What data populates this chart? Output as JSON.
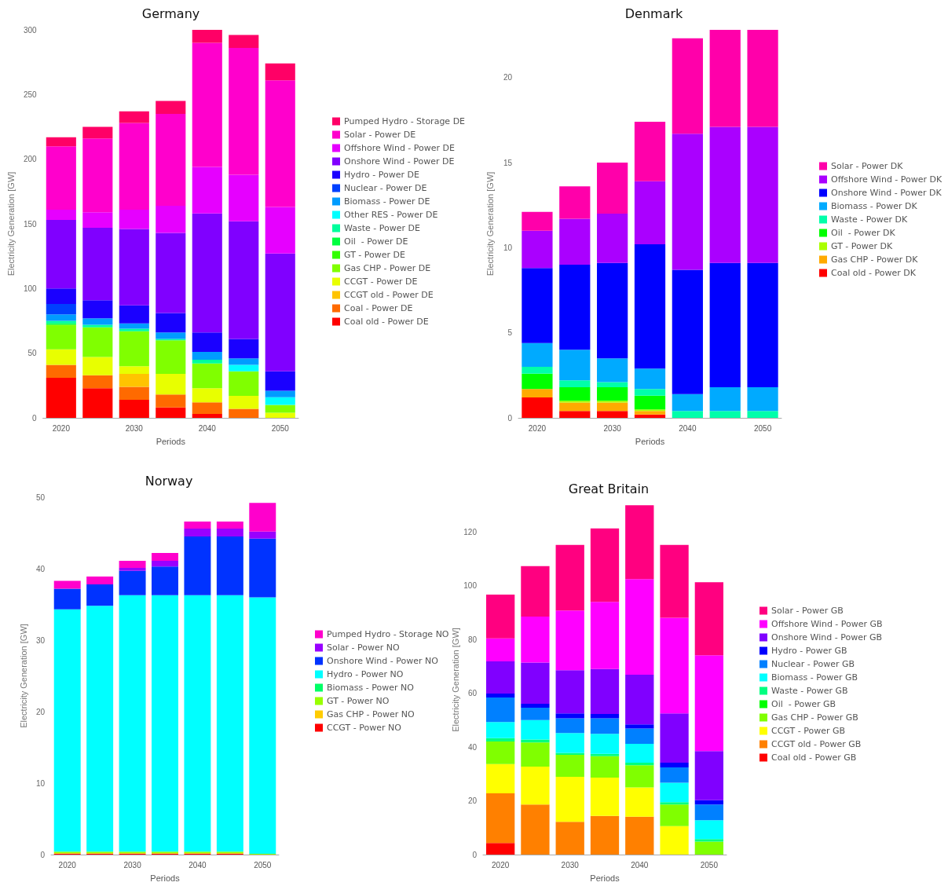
{
  "chart_data": [
    {
      "type": "bar",
      "title": "Germany",
      "xlabel": "Periods",
      "ylabel": "Electricity Generation [GW]",
      "stacked": true,
      "legend": "right",
      "grid": false,
      "categories": [
        "2020",
        null,
        "2030",
        null,
        "2040",
        null,
        "2050"
      ],
      "ylim": [
        0,
        300
      ],
      "yticks": [
        0,
        50,
        100,
        150,
        200,
        250,
        300
      ],
      "series": [
        {
          "name": "Coal old - Power DE",
          "color": "#ff0000",
          "values": [
            31,
            23,
            14,
            8,
            3,
            null,
            null
          ]
        },
        {
          "name": "Coal - Power DE",
          "color": "#ff6a00",
          "values": [
            10,
            10,
            10,
            10,
            9,
            7,
            null
          ]
        },
        {
          "name": "CCGT old - Power DE",
          "color": "#ffc400",
          "values": [
            null,
            null,
            10,
            null,
            null,
            null,
            null
          ]
        },
        {
          "name": "CCGT - Power DE",
          "color": "#e8ff00",
          "values": [
            12,
            14,
            6,
            16,
            11,
            10,
            4
          ]
        },
        {
          "name": "Gas CHP - Power DE",
          "color": "#80ff00",
          "values": [
            19,
            23,
            27,
            26,
            19,
            19,
            6
          ]
        },
        {
          "name": "GT - Power DE",
          "color": "#33ff00",
          "values": [
            null,
            null,
            null,
            null,
            null,
            null,
            null
          ]
        },
        {
          "name": "Oil  - Power DE",
          "color": "#00ff40",
          "values": [
            1,
            null,
            null,
            null,
            null,
            null,
            null
          ]
        },
        {
          "name": "Waste - Power DE",
          "color": "#00ff9c",
          "values": [
            2,
            2,
            2,
            1,
            3,
            null,
            null
          ]
        },
        {
          "name": "Other RES - Power DE",
          "color": "#00ffff",
          "values": [
            null,
            null,
            null,
            null,
            null,
            5,
            6
          ]
        },
        {
          "name": "Biomass - Power DE",
          "color": "#009cff",
          "values": [
            5,
            5,
            4,
            5,
            6,
            5,
            5
          ]
        },
        {
          "name": "Nuclear - Power DE",
          "color": "#0040ff",
          "values": [
            8,
            null,
            null,
            null,
            null,
            null,
            null
          ]
        },
        {
          "name": "Hydro - Power DE",
          "color": "#1a00ff",
          "values": [
            12,
            14,
            14,
            15,
            15,
            15,
            15
          ]
        },
        {
          "name": "Onshore Wind - Power DE",
          "color": "#8000ff",
          "values": [
            53,
            56,
            59,
            62,
            92,
            91,
            91
          ]
        },
        {
          "name": "Offshore Wind - Power DE",
          "color": "#e600ff",
          "values": [
            8,
            12,
            15,
            21,
            36,
            36,
            36
          ]
        },
        {
          "name": "Solar - Power DE",
          "color": "#ff00cc",
          "values": [
            49,
            57,
            67,
            71,
            96,
            98,
            98
          ]
        },
        {
          "name": "Pumped Hydro - Storage DE",
          "color": "#ff0066",
          "values": [
            7,
            9,
            9,
            10,
            10,
            10,
            13
          ]
        }
      ]
    },
    {
      "type": "bar",
      "title": "Denmark",
      "xlabel": "Periods",
      "ylabel": "Electricity Generation [GW]",
      "stacked": true,
      "legend": "right",
      "grid": false,
      "categories": [
        "2020",
        null,
        "2030",
        null,
        "2040",
        null,
        "2050"
      ],
      "ylim": [
        0,
        22.8
      ],
      "yticks": [
        0,
        5,
        10,
        15,
        20
      ],
      "series": [
        {
          "name": "Coal old - Power DK",
          "color": "#ff0000",
          "values": [
            1.2,
            0.4,
            0.4,
            0.2,
            null,
            null,
            null
          ]
        },
        {
          "name": "Gas CHP - Power DK",
          "color": "#ffaa00",
          "values": [
            0.5,
            0.5,
            0.5,
            0.2,
            null,
            null,
            null
          ]
        },
        {
          "name": "GT - Power DK",
          "color": "#aaff00",
          "values": [
            null,
            0.1,
            0.1,
            0.1,
            null,
            null,
            null
          ]
        },
        {
          "name": "Oil  - Power DK",
          "color": "#00ff00",
          "values": [
            0.9,
            0.8,
            0.8,
            0.8,
            null,
            null,
            null
          ]
        },
        {
          "name": "Waste - Power DK",
          "color": "#00ffaa",
          "values": [
            0.4,
            0.4,
            0.3,
            0.4,
            0.4,
            0.4,
            0.4
          ]
        },
        {
          "name": "Biomass - Power DK",
          "color": "#00aaff",
          "values": [
            1.4,
            1.8,
            1.4,
            1.2,
            1.0,
            1.4,
            1.4
          ]
        },
        {
          "name": "Onshore Wind - Power DK",
          "color": "#0000ff",
          "values": [
            4.4,
            5.0,
            5.6,
            7.3,
            7.3,
            7.3,
            7.3
          ]
        },
        {
          "name": "Offshore Wind - Power DK",
          "color": "#aa00ff",
          "values": [
            2.2,
            2.7,
            2.9,
            3.7,
            8.0,
            8.0,
            8.0
          ]
        },
        {
          "name": "Solar - Power DK",
          "color": "#ff00aa",
          "values": [
            1.1,
            1.9,
            3.0,
            3.5,
            5.6,
            5.7,
            5.7
          ]
        }
      ]
    },
    {
      "type": "bar",
      "title": "Norway",
      "xlabel": "Periods",
      "ylabel": "Electricity Generation [GW]",
      "stacked": true,
      "legend": "right",
      "grid": false,
      "categories": [
        "2020",
        null,
        "2030",
        null,
        "2040",
        null,
        "2050"
      ],
      "ylim": [
        0,
        50
      ],
      "yticks": [
        0,
        10,
        20,
        30,
        40,
        50
      ],
      "series": [
        {
          "name": "CCGT - Power NO",
          "color": "#ff0000",
          "values": [
            0.1,
            0.1,
            0.1,
            0.1,
            0.1,
            0.1,
            null
          ]
        },
        {
          "name": "Gas CHP - Power NO",
          "color": "#ffcc00",
          "values": [
            0.1,
            0.1,
            0.1,
            0.1,
            0.1,
            0.1,
            null
          ]
        },
        {
          "name": "GT - Power NO",
          "color": "#99ff00",
          "values": [
            0.2,
            0.2,
            0.2,
            0.2,
            0.2,
            0.2,
            0.1
          ]
        },
        {
          "name": "Biomass - Power NO",
          "color": "#00ff66",
          "values": [
            null,
            null,
            null,
            null,
            null,
            null,
            null
          ]
        },
        {
          "name": "Hydro - Power NO",
          "color": "#00ffff",
          "values": [
            33.9,
            34.4,
            35.9,
            35.9,
            35.9,
            35.9,
            35.9
          ]
        },
        {
          "name": "Onshore Wind - Power NO",
          "color": "#0033ff",
          "values": [
            2.9,
            3.0,
            3.4,
            4.0,
            8.2,
            8.2,
            8.2
          ]
        },
        {
          "name": "Solar - Power NO",
          "color": "#9900ff",
          "values": [
            null,
            null,
            0.4,
            0.8,
            1.1,
            1.1,
            1.0
          ]
        },
        {
          "name": "Pumped Hydro - Storage NO",
          "color": "#ff00cc",
          "values": [
            1.1,
            1.1,
            1.0,
            1.1,
            1.0,
            1.0,
            4.0
          ]
        }
      ]
    },
    {
      "type": "bar",
      "title": "Great Britain",
      "xlabel": "Periods",
      "ylabel": "Electricity Generation [GW]",
      "stacked": true,
      "legend": "right",
      "grid": false,
      "categories": [
        "2020",
        null,
        "2030",
        null,
        "2040",
        null,
        "2050"
      ],
      "ylim": [
        0,
        130
      ],
      "yticks": [
        0,
        20,
        40,
        60,
        80,
        100,
        120
      ],
      "series": [
        {
          "name": "Coal old - Power GB",
          "color": "#ff0000",
          "values": [
            4.3,
            null,
            null,
            null,
            null,
            null,
            null
          ]
        },
        {
          "name": "CCGT old - Power GB",
          "color": "#ff8000",
          "values": [
            18.5,
            18.6,
            12.2,
            14.4,
            14.1,
            null,
            null
          ]
        },
        {
          "name": "CCGT - Power GB",
          "color": "#ffff00",
          "values": [
            10.9,
            14.1,
            16.7,
            14.2,
            10.9,
            10.6,
            null
          ]
        },
        {
          "name": "Gas CHP - Power GB",
          "color": "#80ff00",
          "values": [
            8.4,
            9.0,
            8.2,
            8.0,
            8.2,
            8.0,
            4.8
          ]
        },
        {
          "name": "Oil  - Power GB",
          "color": "#00ff00",
          "values": [
            null,
            null,
            null,
            null,
            null,
            null,
            null
          ]
        },
        {
          "name": "Waste - Power GB",
          "color": "#00ff80",
          "values": [
            1.2,
            1.1,
            0.7,
            0.9,
            1.0,
            0.9,
            1.0
          ]
        },
        {
          "name": "Biomass - Power GB",
          "color": "#00ffff",
          "values": [
            6.0,
            7.2,
            7.4,
            7.4,
            7.0,
            7.2,
            7.0
          ]
        },
        {
          "name": "Nuclear - Power GB",
          "color": "#0080ff",
          "values": [
            9.1,
            4.6,
            5.5,
            5.8,
            5.7,
            5.7,
            5.8
          ]
        },
        {
          "name": "Hydro - Power GB",
          "color": "#0000ff",
          "values": [
            1.5,
            1.5,
            1.8,
            1.6,
            1.5,
            1.8,
            1.6
          ]
        },
        {
          "name": "Onshore Wind - Power GB",
          "color": "#8000ff",
          "values": [
            12.0,
            15.3,
            16.1,
            16.7,
            18.5,
            18.3,
            18.3
          ]
        },
        {
          "name": "Offshore Wind - Power GB",
          "color": "#ff00ff",
          "values": [
            8.5,
            17.1,
            22.2,
            25.0,
            35.6,
            35.6,
            35.6
          ]
        },
        {
          "name": "Solar - Power GB",
          "color": "#ff0080",
          "values": [
            16.3,
            18.8,
            24.4,
            27.3,
            27.4,
            27.1,
            27.2
          ]
        }
      ]
    }
  ]
}
